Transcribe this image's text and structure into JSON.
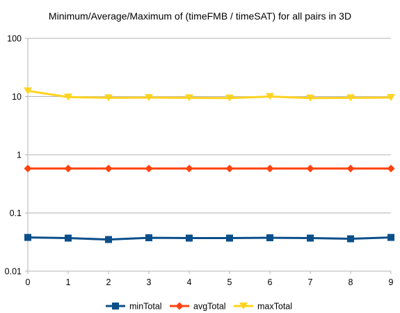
{
  "chart_data": {
    "type": "line",
    "title": "Minimum/Average/Maximum of (timeFMB / timeSAT) for all pairs in 3D",
    "xlabel": "",
    "ylabel": "",
    "y_scale": "log",
    "ylim": [
      0.01,
      100
    ],
    "y_ticks": [
      "100",
      "10",
      "1",
      "0.1",
      "0.01"
    ],
    "y_tick_values": [
      100,
      10,
      1,
      0.1,
      0.01
    ],
    "categories": [
      "0",
      "1",
      "2",
      "3",
      "4",
      "5",
      "6",
      "7",
      "8",
      "9"
    ],
    "grid": "horizontal",
    "legend_position": "bottom",
    "series": [
      {
        "name": "minTotal",
        "color": "#0b4f8a",
        "marker": "square",
        "values": [
          0.038,
          0.037,
          0.035,
          0.0375,
          0.037,
          0.037,
          0.0375,
          0.037,
          0.036,
          0.038
        ]
      },
      {
        "name": "avgTotal",
        "color": "#ff420e",
        "marker": "diamond",
        "values": [
          0.58,
          0.58,
          0.58,
          0.58,
          0.58,
          0.58,
          0.58,
          0.58,
          0.58,
          0.58
        ]
      },
      {
        "name": "maxTotal",
        "color": "#ffd320",
        "marker": "triangle-down",
        "values": [
          12.5,
          9.8,
          9.5,
          9.6,
          9.5,
          9.4,
          10.0,
          9.4,
          9.5,
          9.6
        ]
      }
    ]
  }
}
